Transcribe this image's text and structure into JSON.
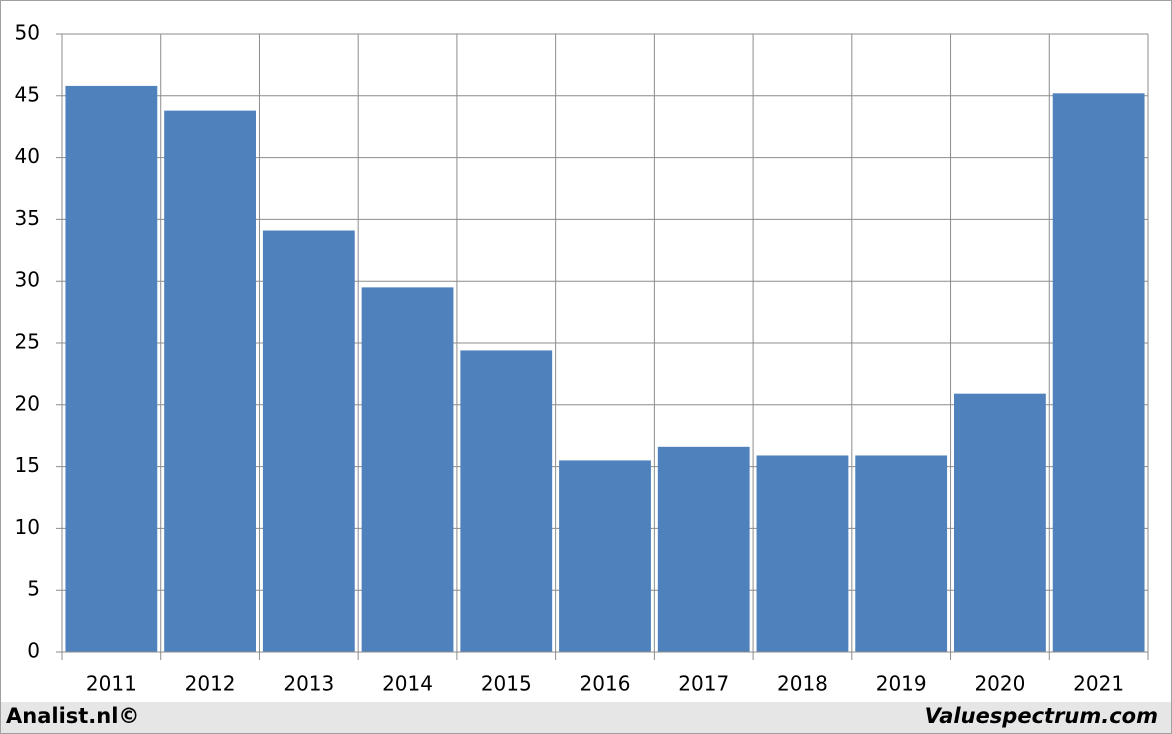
{
  "chart_data": {
    "type": "bar",
    "categories": [
      "2011",
      "2012",
      "2013",
      "2014",
      "2015",
      "2016",
      "2017",
      "2018",
      "2019",
      "2020",
      "2021"
    ],
    "values": [
      45.8,
      43.8,
      34.1,
      29.5,
      24.4,
      15.5,
      16.6,
      15.9,
      15.9,
      20.9,
      45.2
    ],
    "color": "#4f81bd",
    "ylim": [
      0,
      50
    ],
    "yticks": [
      0,
      5,
      10,
      15,
      20,
      25,
      30,
      35,
      40,
      45,
      50
    ],
    "grid": true
  },
  "footer": {
    "left": "Analist.nl©",
    "right": "Valuespectrum.com"
  }
}
